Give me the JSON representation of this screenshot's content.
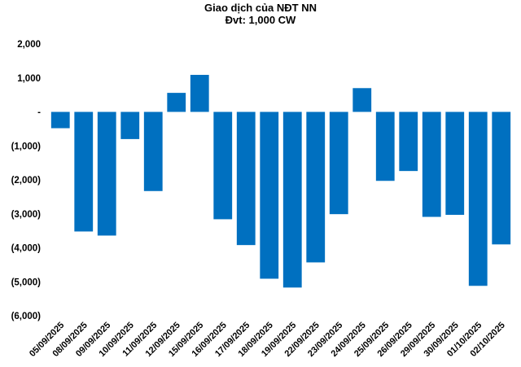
{
  "chart_data": {
    "type": "bar",
    "title": "Giao dịch của NĐT NN",
    "subtitle": "Đvt: 1,000 CW",
    "xlabel": "",
    "ylabel": "",
    "ylim": [
      -6000,
      2000
    ],
    "yticks": [
      2000,
      1000,
      0,
      -1000,
      -2000,
      -3000,
      -4000,
      -5000,
      -6000
    ],
    "ytick_labels": [
      "2,000",
      "1,000",
      "-",
      "(1,000)",
      "(2,000)",
      "(3,000)",
      "(4,000)",
      "(5,000)",
      "(6,000)"
    ],
    "grid": false,
    "legend": "none",
    "bar_color": "#0070C0",
    "categories": [
      "05/09/2025",
      "08/09/2025",
      "09/09/2025",
      "10/09/2025",
      "11/09/2025",
      "12/09/2025",
      "15/09/2025",
      "16/09/2025",
      "17/09/2025",
      "18/09/2025",
      "19/09/2025",
      "22/09/2025",
      "23/09/2025",
      "24/09/2025",
      "25/09/2025",
      "26/09/2025",
      "29/09/2025",
      "30/09/2025",
      "01/10/2025",
      "02/10/2025"
    ],
    "values": [
      -480,
      -3520,
      -3640,
      -800,
      -2330,
      560,
      1090,
      -3160,
      -3920,
      -4910,
      -5170,
      -4430,
      -3010,
      700,
      -2030,
      -1740,
      -3090,
      -3030,
      -5120,
      -3900
    ]
  }
}
